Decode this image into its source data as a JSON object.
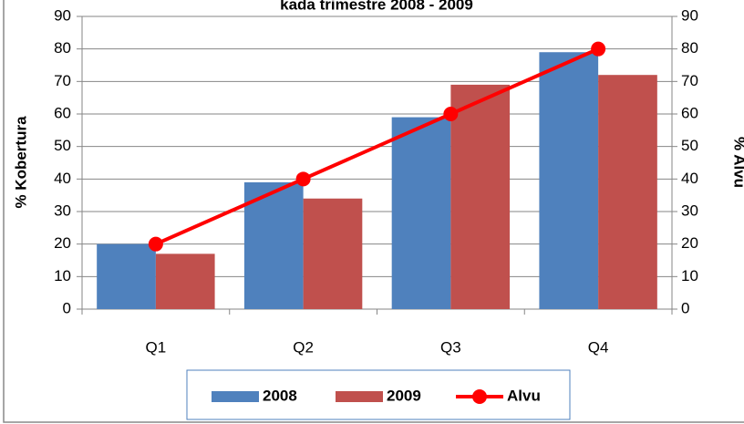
{
  "chart_data": {
    "type": "bar",
    "title": "kada trimestre 2008 - 2009",
    "y_label": "% Kobertura",
    "y2_label": "% Alvu",
    "categories": [
      "Q1",
      "Q2",
      "Q3",
      "Q4"
    ],
    "series": [
      {
        "name": "2008",
        "type": "bar",
        "color": "#4f81bd",
        "values": [
          20,
          39,
          59,
          79
        ]
      },
      {
        "name": "2009",
        "type": "bar",
        "color": "#c0504d",
        "values": [
          17,
          34,
          69,
          72
        ]
      },
      {
        "name": "Alvu",
        "type": "line",
        "axis": "y2",
        "color": "#ff0000",
        "values": [
          20,
          40,
          60,
          80
        ]
      }
    ],
    "ylim": [
      0,
      90
    ],
    "yticks": [
      0,
      10,
      20,
      30,
      40,
      50,
      60,
      70,
      80,
      90
    ],
    "y2lim": [
      0,
      90
    ],
    "y2ticks": [
      0,
      10,
      20,
      30,
      40,
      50,
      60,
      70,
      80,
      90
    ],
    "grid": true,
    "legend": "bottom"
  }
}
